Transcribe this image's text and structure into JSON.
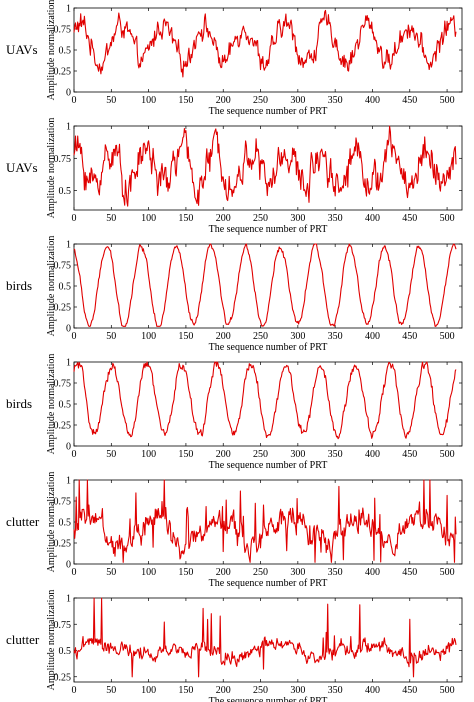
{
  "chart_data": [
    {
      "type": "line",
      "row_label": "UAVs",
      "xlabel": "The sequence number of PRT",
      "ylabel": "Amplitude normalization",
      "xlim": [
        0,
        520
      ],
      "ylim": [
        0,
        1
      ],
      "xticks": [
        "0",
        "50",
        "100",
        "150",
        "200",
        "250",
        "300",
        "350",
        "400",
        "450",
        "500"
      ],
      "yticks": [
        "0",
        "0.25",
        "0.5",
        "0.75",
        "1"
      ],
      "color": "#e00000",
      "pattern": {
        "mean": 0.58,
        "amplitude": 0.22,
        "period": 55,
        "phase": 0.6,
        "noise": 0.11,
        "spike_prob": 0.0,
        "spike_amp": 0,
        "lo": 0.18,
        "hi": 1.0
      }
    },
    {
      "type": "line",
      "row_label": "UAVs",
      "xlabel": "The sequence number of PRT",
      "ylabel": "Amplitude normalization",
      "xlim": [
        0,
        520
      ],
      "ylim": [
        0.35,
        1
      ],
      "xticks": [
        "0",
        "50",
        "100",
        "150",
        "200",
        "250",
        "300",
        "350",
        "400",
        "450",
        "500"
      ],
      "yticks": [
        "0.5",
        "0.75",
        "1"
      ],
      "color": "#e00000",
      "pattern": {
        "mean": 0.68,
        "amplitude": 0.14,
        "period": 47,
        "phase": 1.2,
        "noise": 0.11,
        "spike_prob": 0.0,
        "spike_amp": 0,
        "lo": 0.38,
        "hi": 1.0
      }
    },
    {
      "type": "line",
      "row_label": "birds",
      "xlabel": "The sequence number of PRT",
      "ylabel": "Amplitude normalization",
      "xlim": [
        0,
        520
      ],
      "ylim": [
        0,
        1
      ],
      "xticks": [
        "0",
        "50",
        "100",
        "150",
        "200",
        "250",
        "300",
        "350",
        "400",
        "450",
        "500"
      ],
      "yticks": [
        "0",
        "0.25",
        "0.5",
        "0.75",
        "1"
      ],
      "color": "#e00000",
      "pattern": {
        "mean": 0.5,
        "amplitude": 0.47,
        "period": 46.5,
        "phase": 1.9,
        "noise": 0.03,
        "spike_prob": 0.0,
        "spike_amp": 0,
        "lo": 0.02,
        "hi": 1.0
      }
    },
    {
      "type": "line",
      "row_label": "birds",
      "xlabel": "The sequence number of PRT",
      "ylabel": "Amplitude normalization",
      "xlim": [
        0,
        520
      ],
      "ylim": [
        0,
        1
      ],
      "xticks": [
        "0",
        "50",
        "100",
        "150",
        "200",
        "250",
        "300",
        "350",
        "400",
        "450",
        "500"
      ],
      "yticks": [
        "0",
        "0.25",
        "0.5",
        "0.75",
        "1"
      ],
      "color": "#e00000",
      "pattern": {
        "mean": 0.55,
        "amplitude": 0.42,
        "period": 46.5,
        "phase": 0.9,
        "noise": 0.05,
        "spike_prob": 0.0,
        "spike_amp": 0,
        "lo": 0.05,
        "hi": 1.0
      }
    },
    {
      "type": "line",
      "row_label": "clutter",
      "xlabel": "The sequence number of PRT",
      "ylabel": "Amplitude normalization",
      "xlim": [
        0,
        520
      ],
      "ylim": [
        0,
        1
      ],
      "xticks": [
        "0",
        "50",
        "100",
        "150",
        "200",
        "250",
        "300",
        "350",
        "400",
        "450",
        "500"
      ],
      "yticks": [
        "0",
        "0.25",
        "0.5",
        "0.75",
        "1"
      ],
      "color": "#e00000",
      "pattern": {
        "mean": 0.4,
        "amplitude": 0.15,
        "period": 90,
        "phase": 0.3,
        "noise": 0.12,
        "spike_prob": 0.06,
        "spike_amp": 0.35,
        "lo": 0.02,
        "hi": 1.0
      }
    },
    {
      "type": "line",
      "row_label": "clutter",
      "xlabel": "The sequence number of PRT",
      "ylabel": "Amplitude normalization",
      "xlim": [
        0,
        520
      ],
      "ylim": [
        0.2,
        1
      ],
      "xticks": [
        "0",
        "50",
        "100",
        "150",
        "200",
        "250",
        "300",
        "350",
        "400",
        "450",
        "500"
      ],
      "yticks": [
        "0.25",
        "0.5",
        "0.75",
        "1"
      ],
      "color": "#e00000",
      "pattern": {
        "mean": 0.5,
        "amplitude": 0.04,
        "period": 120,
        "phase": 0.0,
        "noise": 0.06,
        "spike_prob": 0.03,
        "spike_amp": 0.3,
        "lo": 0.25,
        "hi": 1.0
      }
    }
  ]
}
